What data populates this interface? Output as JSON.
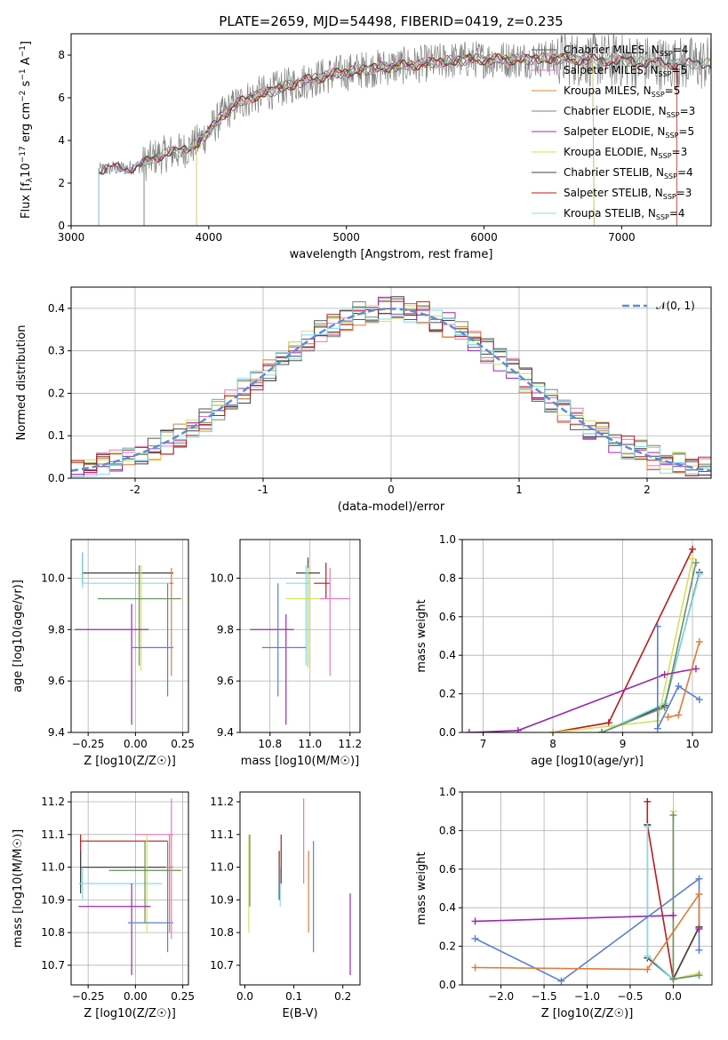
{
  "figure_title": "PLATE=2659, MJD=54498, FIBERID=0419, z=0.235",
  "colors": {
    "observed": "#808080",
    "Chabrier MILES": "#555555",
    "Salpeter MILES": "#e377c2",
    "Kroupa MILES": "#d4883a",
    "Chabrier ELODIE": "#6b8e6b",
    "Salpeter ELODIE": "#9c27b0",
    "Kroupa ELODIE": "#d4e157",
    "Chabrier STELIB": "#424242",
    "Salpeter STELIB": "#b71c1c",
    "Kroupa STELIB": "#80deea",
    "Salpeter ELODIE blue": "#5b7fd6",
    "orange": "#e07b39",
    "gauss": "#5b8dd6"
  },
  "chart_data": [
    {
      "id": "spectrum",
      "type": "line",
      "xlabel": "wavelength [Angstrom, rest frame]",
      "ylabel": "Flux [f_λ10^-17 erg cm^-2 s^-1 A^-1]",
      "xlim": [
        3000,
        7650
      ],
      "ylim": [
        0,
        9
      ],
      "xticks": [
        3000,
        4000,
        5000,
        6000,
        7000
      ],
      "yticks": [
        0,
        2,
        4,
        6,
        8
      ],
      "grid": false,
      "legend_position": "right",
      "legend": [
        {
          "label": "Chabrier MILES",
          "n": "4"
        },
        {
          "label": "Salpeter MILES",
          "n": "5"
        },
        {
          "label": "Kroupa MILES",
          "n": "5"
        },
        {
          "label": "Chabrier ELODIE",
          "n": "3"
        },
        {
          "label": "Salpeter ELODIE",
          "n": "5"
        },
        {
          "label": "Kroupa ELODIE",
          "n": "3"
        },
        {
          "label": "Chabrier STELIB",
          "n": "4"
        },
        {
          "label": "Salpeter STELIB",
          "n": "3"
        },
        {
          "label": "Kroupa STELIB",
          "n": "4"
        }
      ],
      "continuum": {
        "x": [
          3200,
          3300,
          3400,
          3500,
          3600,
          3700,
          3800,
          3900,
          4000,
          4100,
          4200,
          4300,
          4400,
          4500,
          4700,
          4900,
          5100,
          5300,
          5500,
          5700,
          5900,
          6100,
          6300,
          6500,
          6700,
          6900,
          7100,
          7300
        ],
        "y": [
          2.6,
          2.7,
          2.7,
          2.8,
          3.2,
          3.4,
          3.5,
          3.8,
          4.4,
          5.2,
          5.7,
          6.0,
          6.2,
          6.4,
          6.8,
          7.1,
          7.3,
          7.45,
          7.55,
          7.7,
          7.8,
          7.8,
          7.8,
          7.85,
          7.8,
          7.75,
          7.7,
          7.6
        ]
      },
      "model_starts": [
        3200,
        3200,
        3530,
        3530,
        3910,
        3910,
        3200,
        3200,
        3200
      ],
      "model_ends": [
        7650,
        7650,
        7650,
        7650,
        6800,
        6800,
        7650,
        7400,
        7650
      ]
    },
    {
      "id": "residuals",
      "type": "line",
      "xlabel": "(data-model)/error",
      "ylabel": "Normed distribution",
      "xlim": [
        -2.5,
        2.5
      ],
      "ylim": [
        0,
        0.45
      ],
      "xticks": [
        -2,
        -1,
        0,
        1,
        2
      ],
      "yticks": [
        0.0,
        0.1,
        0.2,
        0.3,
        0.4
      ],
      "grid": true,
      "legend_position": "top-right",
      "legend_label": "𝒩(0, 1)",
      "gaussian": {
        "mean": 0,
        "sigma": 1
      }
    },
    {
      "id": "Z_age",
      "type": "scatter",
      "xlabel": "Z [log10(Z/Z☉)]",
      "ylabel": "age [log10(age/yr)]",
      "xlim": [
        -0.34,
        0.28
      ],
      "ylim": [
        9.4,
        10.15
      ],
      "xticks": [
        -0.25,
        0.0,
        0.25
      ],
      "xticklabels": [
        "−0.25",
        "0.00",
        "0.25"
      ],
      "yticks": [
        9.4,
        9.6,
        9.8,
        10.0
      ],
      "yticklabels": [
        "9.4",
        "9.6",
        "9.8",
        "10.0"
      ],
      "grid": true,
      "crosses": [
        {
          "x": -0.28,
          "y": 10.02,
          "xlo": -0.28,
          "xhi": 0.2,
          "ylo": 9.98,
          "yhi": 10.1,
          "c": "#424242"
        },
        {
          "x": -0.28,
          "y": 9.98,
          "xlo": -0.28,
          "xhi": 0.2,
          "ylo": 9.96,
          "yhi": 10.1,
          "c": "#80deea"
        },
        {
          "x": 0.03,
          "y": 9.92,
          "xlo": -0.18,
          "xhi": 0.25,
          "ylo": 9.64,
          "yhi": 10.05,
          "c": "#d4e157"
        },
        {
          "x": 0.02,
          "y": 9.92,
          "xlo": -0.2,
          "xhi": 0.24,
          "ylo": 9.66,
          "yhi": 10.05,
          "c": "#6b8e6b"
        },
        {
          "x": -0.02,
          "y": 9.8,
          "xlo": -0.32,
          "xhi": 0.07,
          "ylo": 9.43,
          "yhi": 9.9,
          "c": "#9c27b0"
        },
        {
          "x": 0.17,
          "y": 9.73,
          "xlo": -0.02,
          "xhi": 0.2,
          "ylo": 9.54,
          "yhi": 9.98,
          "c": "#5b7fd6"
        },
        {
          "x": 0.19,
          "y": 9.98,
          "xlo": 0.18,
          "xhi": 0.2,
          "ylo": 9.62,
          "yhi": 10.04,
          "c": "#e07b39"
        }
      ]
    },
    {
      "id": "mass_age",
      "type": "scatter",
      "xlabel": "mass [log10(M/M☉)]",
      "ylabel": "",
      "xlim": [
        10.65,
        11.25
      ],
      "ylim": [
        9.4,
        10.15
      ],
      "xticks": [
        10.8,
        11.0,
        11.2
      ],
      "xticklabels": [
        "10.8",
        "11.0",
        "11.2"
      ],
      "yticks": [
        9.4,
        9.6,
        9.8,
        10.0
      ],
      "yticklabels": [
        "9.4",
        "9.6",
        "9.8",
        "10.0"
      ],
      "grid": true,
      "crosses": [
        {
          "x": 10.99,
          "y": 10.02,
          "xlo": 10.93,
          "xhi": 11.05,
          "ylo": 9.66,
          "yhi": 10.08,
          "c": "#424242"
        },
        {
          "x": 10.98,
          "y": 9.98,
          "xlo": 10.88,
          "xhi": 11.0,
          "ylo": 9.66,
          "yhi": 10.05,
          "c": "#80deea"
        },
        {
          "x": 10.99,
          "y": 9.92,
          "xlo": 10.88,
          "xhi": 11.1,
          "ylo": 9.65,
          "yhi": 10.04,
          "c": "#d4e157"
        },
        {
          "x": 11.08,
          "y": 9.98,
          "xlo": 11.02,
          "xhi": 11.1,
          "ylo": 9.92,
          "yhi": 10.06,
          "c": "#b71c1c"
        },
        {
          "x": 10.88,
          "y": 9.8,
          "xlo": 10.7,
          "xhi": 10.92,
          "ylo": 9.43,
          "yhi": 9.86,
          "c": "#9c27b0"
        },
        {
          "x": 10.84,
          "y": 9.73,
          "xlo": 10.76,
          "xhi": 10.98,
          "ylo": 9.54,
          "yhi": 9.98,
          "c": "#5b7fd6"
        },
        {
          "x": 11.1,
          "y": 9.92,
          "xlo": 11.05,
          "xhi": 11.2,
          "ylo": 9.62,
          "yhi": 10.04,
          "c": "#e377c2"
        }
      ]
    },
    {
      "id": "age_weight",
      "type": "line",
      "xlabel": "age [log10(age/yr)]",
      "ylabel": "mass weight",
      "xlim": [
        6.7,
        10.28
      ],
      "ylim": [
        0,
        1
      ],
      "xticks": [
        7,
        8,
        9,
        10
      ],
      "yticks": [
        0.0,
        0.2,
        0.4,
        0.6,
        0.8,
        1.0
      ],
      "grid": true,
      "series": [
        {
          "c": "#b71c1c",
          "x": [
            8.0,
            8.8,
            10.0
          ],
          "y": [
            0.0,
            0.05,
            0.95
          ]
        },
        {
          "c": "#424242",
          "x": [
            8.7,
            9.6,
            10.1
          ],
          "y": [
            0.0,
            0.14,
            0.83
          ]
        },
        {
          "c": "#80deea",
          "x": [
            8.7,
            9.6,
            10.1
          ],
          "y": [
            0.0,
            0.15,
            0.82
          ]
        },
        {
          "c": "#d4e157",
          "x": [
            8.0,
            9.5,
            10.0
          ],
          "y": [
            0.0,
            0.06,
            0.9
          ]
        },
        {
          "c": "#6b8e6b",
          "x": [
            8.7,
            9.6,
            10.05
          ],
          "y": [
            0.0,
            0.13,
            0.88
          ]
        },
        {
          "c": "#9c27b0",
          "x": [
            6.8,
            7.5,
            9.6,
            10.05
          ],
          "y": [
            0.0,
            0.01,
            0.3,
            0.33
          ]
        },
        {
          "c": "#5b7fd6",
          "x": [
            9.5,
            9.5,
            9.8,
            10.1
          ],
          "y": [
            0.55,
            0.02,
            0.24,
            0.17
          ]
        },
        {
          "c": "#e07b39",
          "x": [
            9.65,
            9.8,
            10.1
          ],
          "y": [
            0.08,
            0.09,
            0.47
          ]
        }
      ]
    },
    {
      "id": "Z_mass",
      "type": "scatter",
      "xlabel": "Z [log10(Z/Z☉)]",
      "ylabel": "mass [log10(M/M☉)]",
      "xlim": [
        -0.34,
        0.28
      ],
      "ylim": [
        10.64,
        11.23
      ],
      "xticks": [
        -0.25,
        0.0,
        0.25
      ],
      "xticklabels": [
        "−0.25",
        "0.00",
        "0.25"
      ],
      "yticks": [
        10.7,
        10.8,
        10.9,
        11.0,
        11.1,
        11.2
      ],
      "yticklabels": [
        "10.7",
        "10.8",
        "10.9",
        "11.0",
        "11.1",
        "11.2"
      ],
      "grid": true,
      "crosses": [
        {
          "x": -0.29,
          "y": 11.08,
          "xlo": -0.29,
          "xhi": 0.17,
          "ylo": 10.94,
          "yhi": 11.1,
          "c": "#b71c1c"
        },
        {
          "x": -0.29,
          "y": 11.0,
          "xlo": -0.29,
          "xhi": 0.16,
          "ylo": 10.92,
          "yhi": 11.05,
          "c": "#424242"
        },
        {
          "x": -0.28,
          "y": 10.95,
          "xlo": -0.3,
          "xhi": 0.14,
          "ylo": 10.9,
          "yhi": 11.0,
          "c": "#80deea"
        },
        {
          "x": 0.06,
          "y": 10.99,
          "xlo": -0.12,
          "xhi": 0.25,
          "ylo": 10.8,
          "yhi": 11.1,
          "c": "#d4e157"
        },
        {
          "x": 0.05,
          "y": 10.99,
          "xlo": -0.14,
          "xhi": 0.24,
          "ylo": 10.83,
          "yhi": 11.08,
          "c": "#6b8e6b"
        },
        {
          "x": -0.02,
          "y": 10.88,
          "xlo": -0.3,
          "xhi": 0.08,
          "ylo": 10.67,
          "yhi": 10.95,
          "c": "#9c27b0"
        },
        {
          "x": 0.17,
          "y": 10.83,
          "xlo": -0.04,
          "xhi": 0.2,
          "ylo": 10.74,
          "yhi": 11.08,
          "c": "#5b7fd6"
        },
        {
          "x": 0.19,
          "y": 11.1,
          "xlo": 0.0,
          "xhi": 0.2,
          "ylo": 10.78,
          "yhi": 11.21,
          "c": "#e377c2"
        },
        {
          "x": 0.18,
          "y": 11.0,
          "xlo": 0.16,
          "xhi": 0.2,
          "ylo": 10.8,
          "yhi": 11.1,
          "c": "#e07b39"
        }
      ]
    },
    {
      "id": "ebv_mass",
      "type": "scatter",
      "xlabel": "E(B-V)",
      "ylabel": "",
      "xlim": [
        -0.01,
        0.235
      ],
      "ylim": [
        10.64,
        11.23
      ],
      "xticks": [
        0.0,
        0.1,
        0.2
      ],
      "xticklabels": [
        "0.0",
        "0.1",
        "0.2"
      ],
      "yticks": [
        10.7,
        10.8,
        10.9,
        11.0,
        11.1,
        11.2
      ],
      "yticklabels": [
        "10.7",
        "10.8",
        "10.9",
        "11.0",
        "11.1",
        "11.2"
      ],
      "grid": false,
      "bars": [
        {
          "x": 0.008,
          "ylo": 10.8,
          "yhi": 11.1,
          "c": "#d4e157"
        },
        {
          "x": 0.01,
          "ylo": 10.88,
          "yhi": 11.1,
          "c": "#6b8e6b"
        },
        {
          "x": 0.07,
          "ylo": 10.9,
          "yhi": 11.05,
          "c": "#424242"
        },
        {
          "x": 0.072,
          "ylo": 10.88,
          "yhi": 11.0,
          "c": "#80deea"
        },
        {
          "x": 0.074,
          "ylo": 10.95,
          "yhi": 11.1,
          "c": "#b71c1c"
        },
        {
          "x": 0.12,
          "ylo": 10.95,
          "yhi": 11.21,
          "c": "#e377c2"
        },
        {
          "x": 0.13,
          "ylo": 10.8,
          "yhi": 11.05,
          "c": "#e07b39"
        },
        {
          "x": 0.14,
          "ylo": 10.74,
          "yhi": 11.08,
          "c": "#5b7fd6"
        },
        {
          "x": 0.215,
          "ylo": 10.67,
          "yhi": 10.92,
          "c": "#9c27b0"
        }
      ]
    },
    {
      "id": "Z_weight",
      "type": "line",
      "xlabel": "Z [log10(Z/Z☉)]",
      "ylabel": "mass weight",
      "xlim": [
        -2.45,
        0.45
      ],
      "ylim": [
        0,
        1
      ],
      "xticks": [
        -2.0,
        -1.5,
        -1.0,
        -0.5,
        0.0
      ],
      "xticklabels": [
        "−2.0",
        "−1.5",
        "−1.0",
        "−0.5",
        "0.0"
      ],
      "yticks": [
        0.0,
        0.2,
        0.4,
        0.6,
        0.8,
        1.0
      ],
      "grid": true,
      "series": [
        {
          "c": "#b71c1c",
          "x": [
            -0.3,
            -0.3,
            0.0,
            0.3
          ],
          "y": [
            0.95,
            0.83,
            0.03,
            0.3
          ]
        },
        {
          "c": "#424242",
          "x": [
            -0.3,
            -0.3,
            0.0,
            0.3
          ],
          "y": [
            0.83,
            0.14,
            0.03,
            0.3
          ]
        },
        {
          "c": "#80deea",
          "x": [
            -0.3,
            -0.3,
            0.0
          ],
          "y": [
            0.82,
            0.15,
            0.03
          ]
        },
        {
          "c": "#d4e157",
          "x": [
            0.0,
            0.0,
            0.3
          ],
          "y": [
            0.9,
            0.03,
            0.06
          ]
        },
        {
          "c": "#6b8e6b",
          "x": [
            0.0,
            0.0,
            0.3
          ],
          "y": [
            0.88,
            0.03,
            0.05
          ]
        },
        {
          "c": "#9c27b0",
          "x": [
            -2.3,
            0.0
          ],
          "y": [
            0.33,
            0.36
          ]
        },
        {
          "c": "#5b7fd6",
          "x": [
            -2.3,
            -1.3,
            0.3,
            0.3
          ],
          "y": [
            0.24,
            0.02,
            0.55,
            0.18
          ]
        },
        {
          "c": "#e07b39",
          "x": [
            -2.3,
            -0.3,
            0.3,
            0.3
          ],
          "y": [
            0.09,
            0.08,
            0.47,
            0.29
          ]
        },
        {
          "c": "#9c27b0",
          "x": [
            0.3
          ],
          "y": [
            0.29
          ]
        }
      ]
    }
  ]
}
